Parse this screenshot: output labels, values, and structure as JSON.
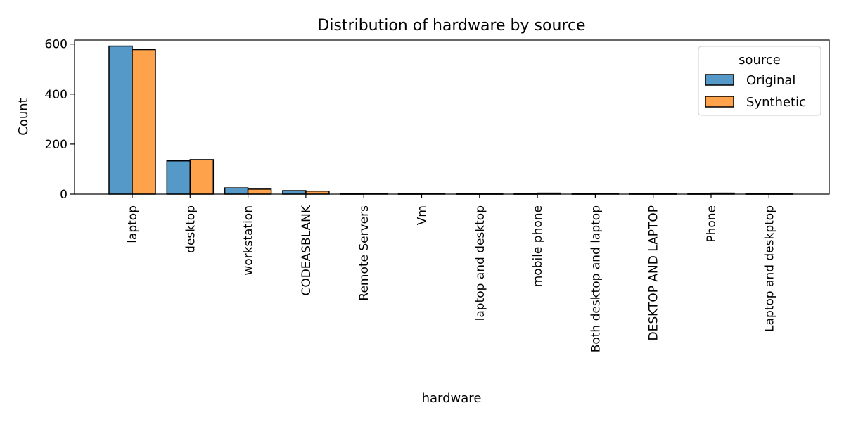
{
  "chart_data": {
    "type": "bar",
    "title": "Distribution of hardware by source",
    "xlabel": "hardware",
    "ylabel": "Count",
    "ylim": [
      0,
      620
    ],
    "yticks": [
      0,
      200,
      400,
      600
    ],
    "grid": false,
    "legend": {
      "title": "source",
      "placement": "top-right"
    },
    "categories": [
      "laptop",
      "desktop",
      "workstation",
      "CODEASBLANK",
      "Remote Servers",
      "Vm",
      "laptop and desktop",
      "mobile phone",
      "Both desktop and laptop",
      "DESKTOP AND LAPTOP",
      "Phone",
      "Laptop and deskptop"
    ],
    "series": [
      {
        "name": "Original",
        "color": "#5499c7",
        "values": [
          592,
          133,
          25,
          14,
          1,
          1,
          1,
          1,
          1,
          1,
          1,
          1
        ]
      },
      {
        "name": "Synthetic",
        "color": "#ffa24c",
        "values": [
          578,
          138,
          20,
          12,
          3,
          3,
          1,
          4,
          3,
          1,
          4,
          1
        ]
      }
    ]
  }
}
